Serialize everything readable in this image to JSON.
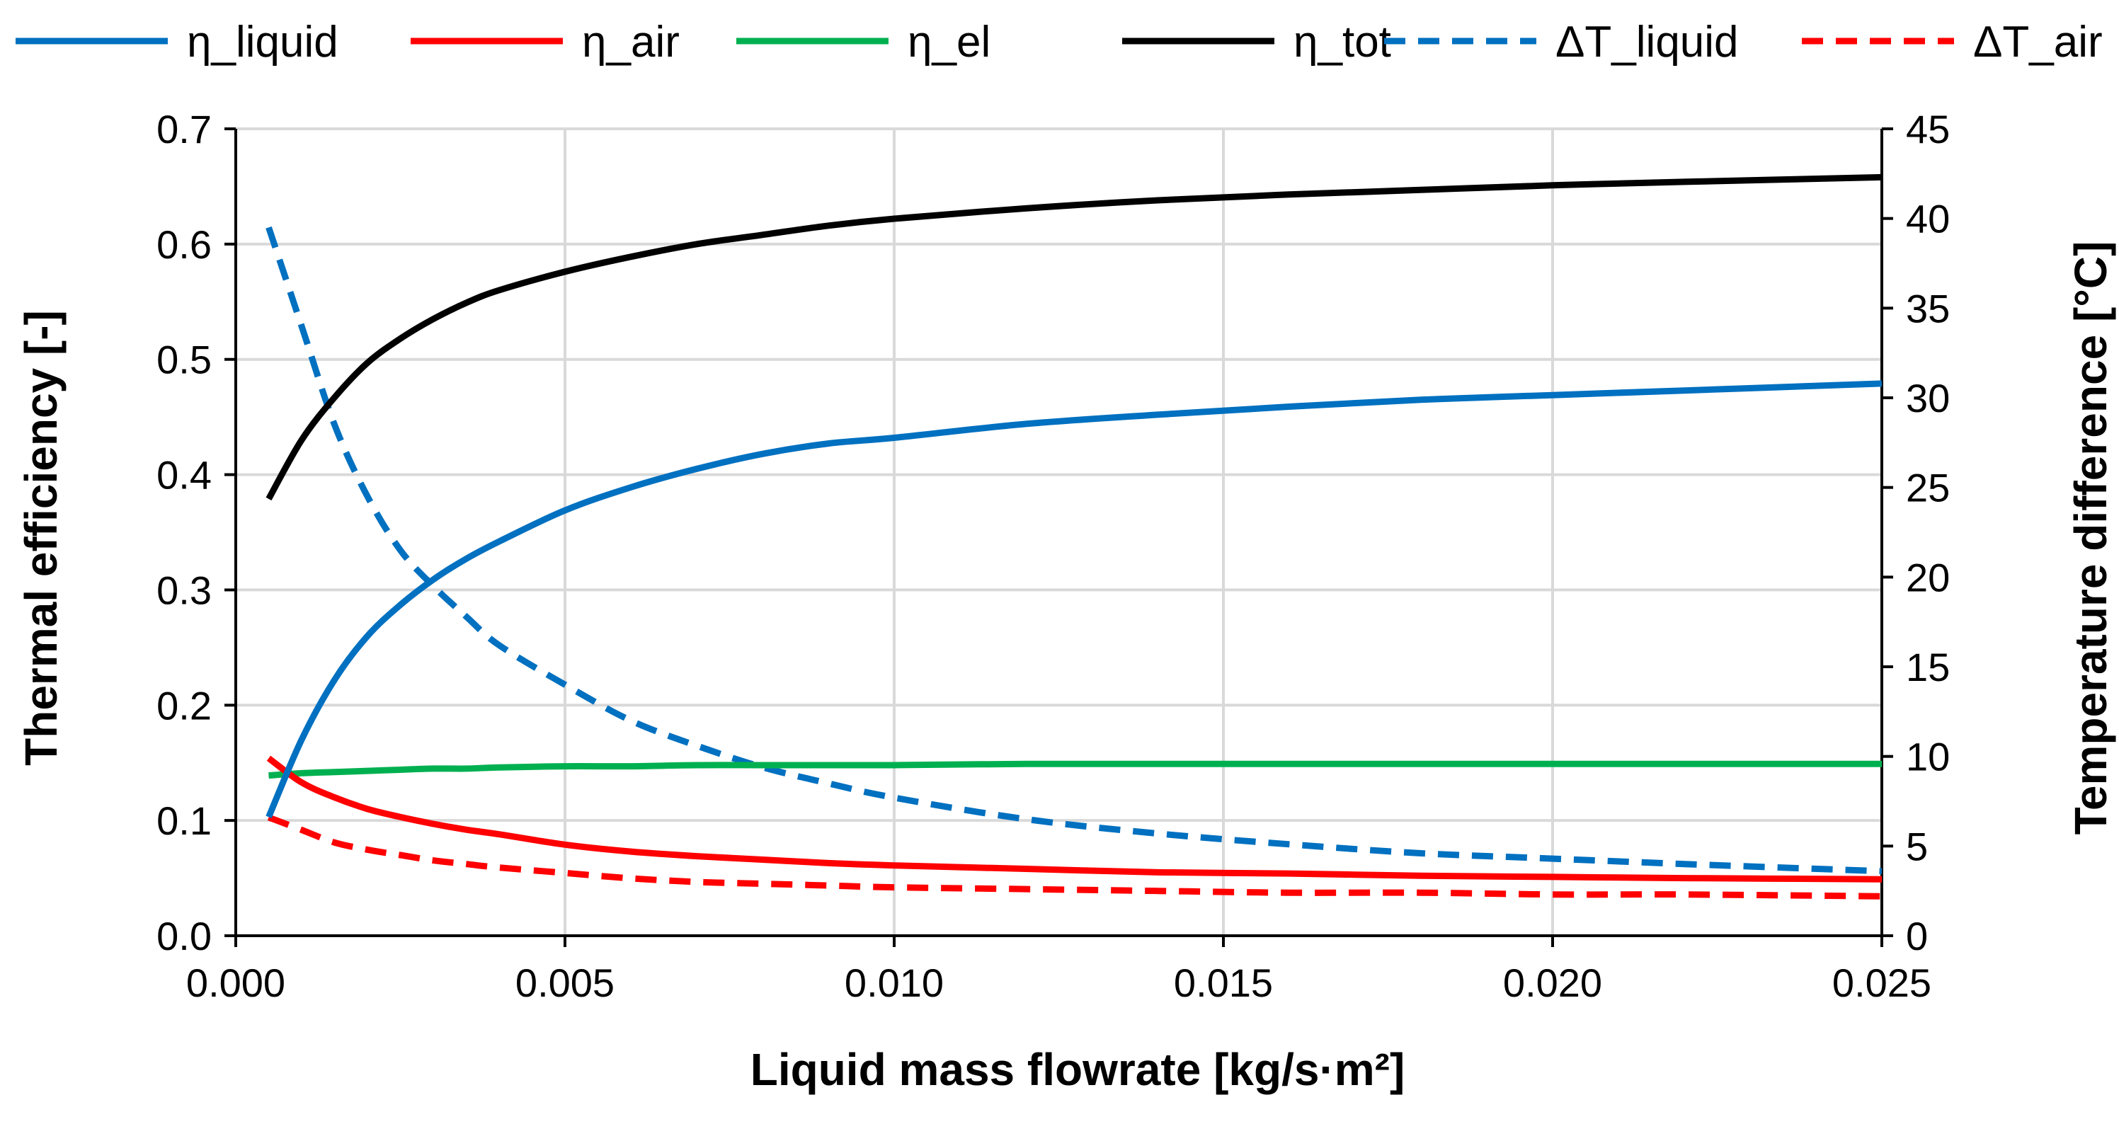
{
  "chart_data": {
    "type": "line",
    "title": "",
    "xlabel": "Liquid mass flowrate [kg/s·m²]",
    "ylabel_left": "Thermal efficiency  [-]",
    "ylabel_right": "Temperature difference  [°C]",
    "xlim": [
      0.0,
      0.025
    ],
    "ylim_left": [
      0.0,
      0.7
    ],
    "ylim_right": [
      0,
      45
    ],
    "x_ticks": [
      "0.000",
      "0.005",
      "0.010",
      "0.015",
      "0.020",
      "0.025"
    ],
    "y_left_ticks": [
      "0.0",
      "0.1",
      "0.2",
      "0.3",
      "0.4",
      "0.5",
      "0.6",
      "0.7"
    ],
    "y_right_ticks": [
      "0",
      "5",
      "10",
      "15",
      "20",
      "25",
      "30",
      "35",
      "40",
      "45"
    ],
    "grid": true,
    "legend_position": "top",
    "x": [
      0.0005,
      0.001,
      0.0015,
      0.002,
      0.0025,
      0.003,
      0.0035,
      0.004,
      0.005,
      0.006,
      0.007,
      0.008,
      0.009,
      0.01,
      0.012,
      0.014,
      0.016,
      0.018,
      0.02,
      0.022,
      0.025
    ],
    "series": [
      {
        "name": "η_liquid",
        "axis": "left",
        "color": "#0070c0",
        "dashed": false,
        "values": [
          0.103,
          0.17,
          0.222,
          0.26,
          0.287,
          0.309,
          0.327,
          0.342,
          0.369,
          0.389,
          0.405,
          0.418,
          0.427,
          0.432,
          0.444,
          0.452,
          0.459,
          0.465,
          0.469,
          0.473,
          0.479
        ]
      },
      {
        "name": "η_air",
        "axis": "left",
        "color": "#ff0000",
        "dashed": false,
        "values": [
          0.154,
          0.133,
          0.12,
          0.11,
          0.103,
          0.097,
          0.092,
          0.088,
          0.079,
          0.073,
          0.069,
          0.066,
          0.063,
          0.061,
          0.058,
          0.055,
          0.054,
          0.052,
          0.051,
          0.05,
          0.049
        ]
      },
      {
        "name": "η_el",
        "axis": "left",
        "color": "#00b050",
        "dashed": false,
        "values": [
          0.139,
          0.141,
          0.142,
          0.143,
          0.144,
          0.145,
          0.145,
          0.146,
          0.147,
          0.147,
          0.148,
          0.148,
          0.148,
          0.148,
          0.149,
          0.149,
          0.149,
          0.149,
          0.149,
          0.149,
          0.149
        ]
      },
      {
        "name": "η_tot",
        "axis": "left",
        "color": "#000000",
        "dashed": false,
        "values": [
          0.379,
          0.43,
          0.467,
          0.497,
          0.518,
          0.535,
          0.549,
          0.56,
          0.576,
          0.589,
          0.6,
          0.608,
          0.616,
          0.622,
          0.631,
          0.638,
          0.643,
          0.647,
          0.651,
          0.654,
          0.658
        ]
      },
      {
        "name": "ΔT_liquid",
        "axis": "right",
        "color": "#0070c0",
        "dashed": true,
        "values": [
          39.5,
          34.0,
          28.5,
          24.5,
          21.5,
          19.5,
          17.8,
          16.2,
          14.0,
          12.0,
          10.6,
          9.4,
          8.5,
          7.7,
          6.5,
          5.7,
          5.1,
          4.6,
          4.3,
          4.0,
          3.6
        ]
      },
      {
        "name": "ΔT_air",
        "axis": "right",
        "color": "#ff0000",
        "dashed": true,
        "values": [
          6.6,
          5.9,
          5.2,
          4.8,
          4.5,
          4.2,
          4.0,
          3.8,
          3.5,
          3.2,
          3.0,
          2.9,
          2.8,
          2.7,
          2.6,
          2.5,
          2.4,
          2.4,
          2.3,
          2.3,
          2.2
        ]
      }
    ]
  }
}
